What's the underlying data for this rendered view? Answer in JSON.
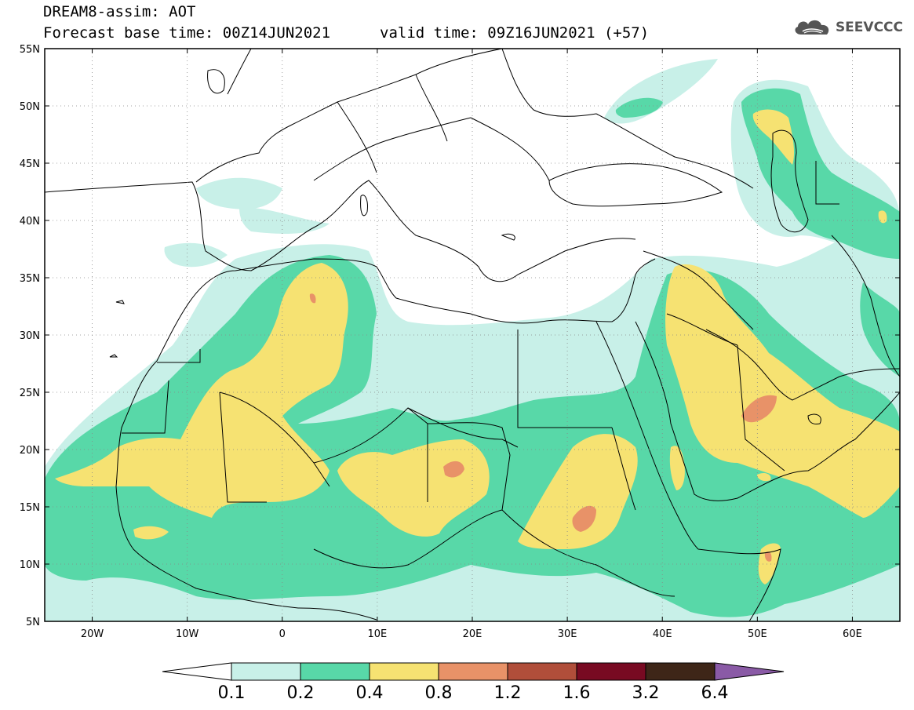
{
  "header": {
    "line1": "DREAM8-assim: AOT",
    "line2_left": "Forecast base time: 00Z14JUN2021",
    "line2_right": "valid time: 09Z16JUN2021 (+57)",
    "logo_text": "SEEVCCC"
  },
  "map": {
    "lon_range": [
      -25,
      65
    ],
    "lat_range": [
      5,
      55
    ],
    "lon_ticks": [
      {
        "lon": -20,
        "label": "20W"
      },
      {
        "lon": -10,
        "label": "10W"
      },
      {
        "lon": 0,
        "label": "0"
      },
      {
        "lon": 10,
        "label": "10E"
      },
      {
        "lon": 20,
        "label": "20E"
      },
      {
        "lon": 30,
        "label": "30E"
      },
      {
        "lon": 40,
        "label": "40E"
      },
      {
        "lon": 50,
        "label": "50E"
      },
      {
        "lon": 60,
        "label": "60E"
      }
    ],
    "lat_ticks": [
      {
        "lat": 5,
        "label": "5N"
      },
      {
        "lat": 10,
        "label": "10N"
      },
      {
        "lat": 15,
        "label": "15N"
      },
      {
        "lat": 20,
        "label": "20N"
      },
      {
        "lat": 25,
        "label": "25N"
      },
      {
        "lat": 30,
        "label": "30N"
      },
      {
        "lat": 35,
        "label": "35N"
      },
      {
        "lat": 40,
        "label": "40N"
      },
      {
        "lat": 45,
        "label": "45N"
      },
      {
        "lat": 50,
        "label": "50N"
      },
      {
        "lat": 55,
        "label": "55N"
      }
    ],
    "grid": true
  },
  "colorbar": {
    "levels": [
      "0.1",
      "0.2",
      "0.4",
      "0.8",
      "1.2",
      "1.6",
      "3.2",
      "6.4"
    ],
    "colors": [
      "#c8f0e8",
      "#58d8a8",
      "#f6e272",
      "#e89268",
      "#b04e3a",
      "#780a22",
      "#3e2618",
      "#8a5aa6"
    ],
    "under_color": "#ffffff",
    "over_color": "#8a5aa6"
  },
  "colors": {
    "c1": "#c8f0e8",
    "c2": "#58d8a8",
    "c3": "#f6e272",
    "c4": "#e89268"
  }
}
